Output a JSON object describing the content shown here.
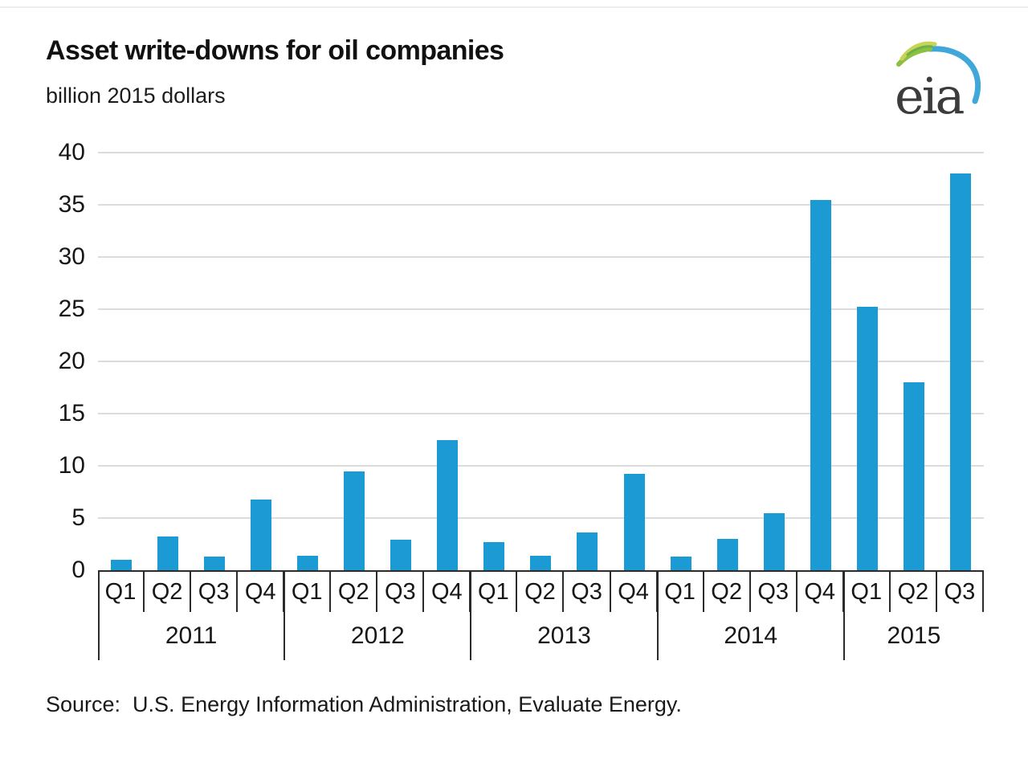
{
  "header": {
    "title": "Asset write-downs for oil companies",
    "subtitle": "billion 2015 dollars"
  },
  "logo": {
    "text": "eia",
    "text_color": "#3c3c3c",
    "arc_blue": "#3fa8d8",
    "leaf_green": "#8cbf42",
    "leaf_yellow": "#c9d455"
  },
  "chart_data": {
    "type": "bar",
    "title": "Asset write-downs for oil companies",
    "unit_label": "billion 2015 dollars",
    "ylim": [
      0,
      40
    ],
    "yticks": [
      0,
      5,
      10,
      15,
      20,
      25,
      30,
      35,
      40
    ],
    "grid": true,
    "legend_position": "none",
    "bar_color": "#1c9ad4",
    "gridline_color": "#dcdcdc",
    "axis_color": "#2b2b2b",
    "groups": [
      {
        "year": "2011",
        "quarters": [
          "Q1",
          "Q2",
          "Q3",
          "Q4"
        ],
        "values": [
          1.0,
          3.2,
          1.3,
          6.8
        ]
      },
      {
        "year": "2012",
        "quarters": [
          "Q1",
          "Q2",
          "Q3",
          "Q4"
        ],
        "values": [
          1.4,
          9.5,
          2.9,
          12.5
        ]
      },
      {
        "year": "2013",
        "quarters": [
          "Q1",
          "Q2",
          "Q3",
          "Q4"
        ],
        "values": [
          2.7,
          1.4,
          3.6,
          9.2
        ]
      },
      {
        "year": "2014",
        "quarters": [
          "Q1",
          "Q2",
          "Q3",
          "Q4"
        ],
        "values": [
          1.3,
          3.0,
          5.5,
          35.5
        ]
      },
      {
        "year": "2015",
        "quarters": [
          "Q1",
          "Q2",
          "Q3"
        ],
        "values": [
          25.2,
          18.0,
          38.0
        ]
      }
    ]
  },
  "source": {
    "text": "Source:  U.S. Energy Information Administration, Evaluate Energy."
  }
}
